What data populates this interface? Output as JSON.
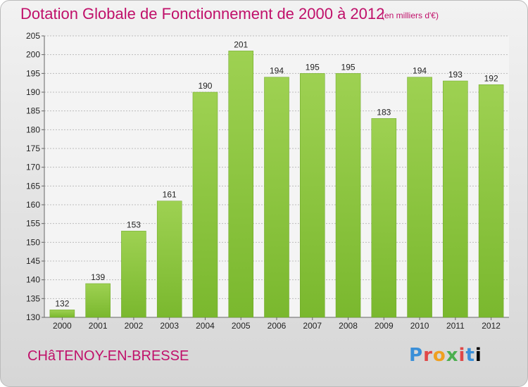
{
  "chart_data": {
    "type": "bar",
    "title": "Dotation Globale de Fonctionnement de 2000 à 2012",
    "subtitle": "(en milliers d'€)",
    "categories": [
      "2000",
      "2001",
      "2002",
      "2003",
      "2004",
      "2005",
      "2006",
      "2007",
      "2008",
      "2009",
      "2010",
      "2011",
      "2012"
    ],
    "values": [
      132,
      139,
      153,
      161,
      190,
      201,
      194,
      195,
      195,
      183,
      194,
      193,
      192
    ],
    "ylim": [
      130,
      205
    ],
    "yticks": [
      130,
      135,
      140,
      145,
      150,
      155,
      160,
      165,
      170,
      175,
      180,
      185,
      190,
      195,
      200,
      205
    ],
    "grid": true,
    "bar_color": "#7ab82e",
    "bar_highlight": "#9ed152",
    "xlabel": "",
    "ylabel": ""
  },
  "footer": {
    "commune": "CHâTENOY-EN-BRESSE",
    "logo_letters": [
      "P",
      "r",
      "o",
      "x",
      "i",
      "t",
      "i"
    ]
  },
  "colors": {
    "title": "#c0106a",
    "grid": "#bbbbbb"
  }
}
